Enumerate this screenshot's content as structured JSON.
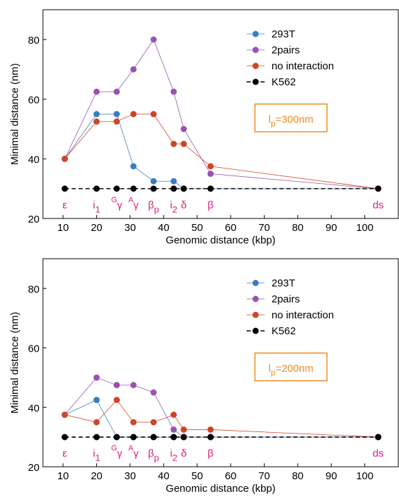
{
  "chart_data": [
    {
      "type": "line",
      "xlabel": "Genomic distance (kbp)",
      "ylabel": "Minimal distance (nm)",
      "x": [
        10.5,
        20,
        26,
        31,
        37,
        43,
        46,
        54,
        104
      ],
      "xlim": [
        4,
        110
      ],
      "xticks": [
        10,
        20,
        30,
        40,
        50,
        60,
        70,
        80,
        90,
        100
      ],
      "ylim": [
        20,
        90
      ],
      "yticks": [
        20,
        40,
        60,
        80
      ],
      "legend": "upper right",
      "series": [
        {
          "name": "293T",
          "color": "#3b7cc4",
          "values": [
            40,
            55,
            55,
            37.5,
            32.5,
            32.5,
            30,
            30,
            30
          ]
        },
        {
          "name": "2pairs",
          "color": "#9a52b0",
          "values": [
            40,
            62.5,
            62.5,
            70,
            80,
            62.5,
            50,
            35,
            30
          ]
        },
        {
          "name": "no interaction",
          "color": "#cf4526",
          "values": [
            40,
            52.5,
            52.5,
            55,
            55,
            45,
            45,
            37.5,
            30
          ]
        },
        {
          "name": "K562",
          "color": "#000000",
          "line_style": "dashed",
          "values": [
            30,
            30,
            30,
            30,
            30,
            30,
            30,
            30,
            30
          ]
        }
      ],
      "annotation": {
        "base": "l",
        "sub": "p",
        "rest": "=300nm"
      },
      "gene_labels": [
        {
          "base": "ε"
        },
        {
          "base": "i",
          "sub": "1"
        },
        {
          "sup": "G",
          "base": "γ"
        },
        {
          "sup": "A",
          "base": "γ"
        },
        {
          "base": "β",
          "sub": "p"
        },
        {
          "base": "i",
          "sub": "2"
        },
        {
          "base": "δ"
        },
        {
          "base": "β"
        },
        {
          "base": "ds"
        }
      ]
    },
    {
      "type": "line",
      "xlabel": "Genomic distance (kbp)",
      "ylabel": "Minimal distance (nm)",
      "x": [
        10.5,
        20,
        26,
        31,
        37,
        43,
        46,
        54,
        104
      ],
      "xlim": [
        4,
        110
      ],
      "xticks": [
        10,
        20,
        30,
        40,
        50,
        60,
        70,
        80,
        90,
        100
      ],
      "ylim": [
        20,
        90
      ],
      "yticks": [
        20,
        40,
        60,
        80
      ],
      "legend": "upper right",
      "series": [
        {
          "name": "293T",
          "color": "#3b7cc4",
          "values": [
            37.5,
            42.5,
            30,
            30,
            30,
            30,
            30,
            30,
            30
          ]
        },
        {
          "name": "2pairs",
          "color": "#9a52b0",
          "values": [
            37.5,
            50,
            47.5,
            47.5,
            45,
            32.5,
            30,
            30,
            30
          ]
        },
        {
          "name": "no interaction",
          "color": "#cf4526",
          "values": [
            37.5,
            35,
            42.5,
            35,
            35,
            37.5,
            32.5,
            32.5,
            30
          ]
        },
        {
          "name": "K562",
          "color": "#000000",
          "line_style": "dashed",
          "values": [
            30,
            30,
            30,
            30,
            30,
            30,
            30,
            30,
            30
          ]
        }
      ],
      "annotation": {
        "base": "l",
        "sub": "p",
        "rest": "=200nm"
      },
      "gene_labels": [
        {
          "base": "ε"
        },
        {
          "base": "i",
          "sub": "1"
        },
        {
          "sup": "G",
          "base": "γ"
        },
        {
          "sup": "A",
          "base": "γ"
        },
        {
          "base": "β",
          "sub": "p"
        },
        {
          "base": "i",
          "sub": "2"
        },
        {
          "base": "δ"
        },
        {
          "base": "β"
        },
        {
          "base": "ds"
        }
      ]
    }
  ]
}
